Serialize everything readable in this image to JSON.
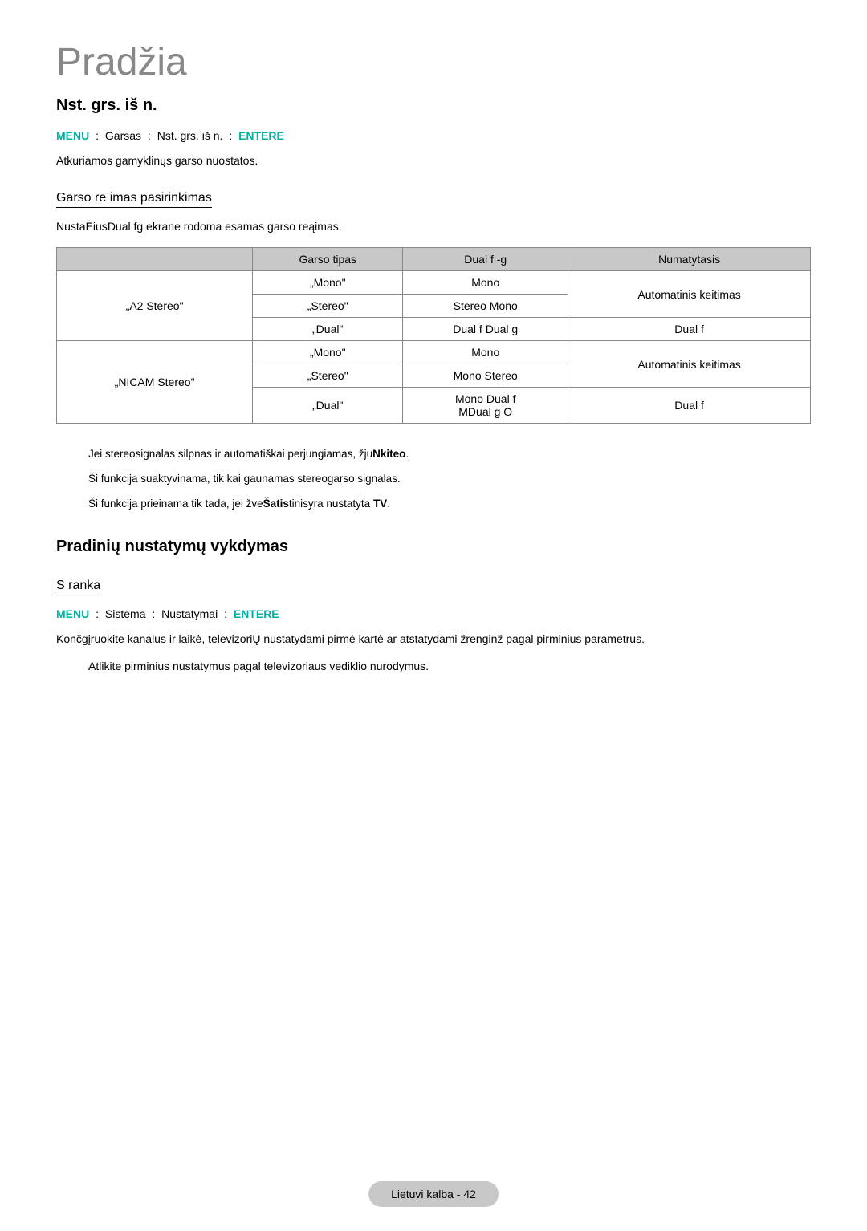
{
  "page": {
    "title": "Pradžia",
    "footer": "Lietuvi kalba - 42"
  },
  "colors": {
    "accent": "#00b3a0",
    "titleGray": "#888888",
    "headerBg": "#c8c8c8",
    "border": "#888888"
  },
  "section1": {
    "title": "Nst. grs. iš n.",
    "menuLabel": "MENU",
    "path1": "Garsas",
    "path2": "Nst. grs. iš n.",
    "enterLabel": "ENTERE",
    "body": "Atkuriamos gamyklinųs garso nuostatos."
  },
  "subsection1": {
    "title": "Garso re imas  pasirinkimas",
    "infoPrefix": "NustaĖius",
    "infoBold": "Dual fg",
    "infoSuffix": " ekrane rodoma esamas garso reąimas."
  },
  "table": {
    "headers": [
      "",
      "Garso tipas",
      "Dual f -g",
      "Numatytasis"
    ],
    "rows": [
      {
        "col1": "„A2 Stereo\"",
        "col2": "„Mono\"",
        "col3": "Mono",
        "col4": "Automatinis keitimas",
        "col1_rowspan": 3,
        "col4_rowspan": 2
      },
      {
        "col2": "„Stereo\"",
        "col3": "Stereo    Mono"
      },
      {
        "col2": "„Dual\"",
        "col3": "Dual f    Dual g",
        "col4": "Dual f"
      },
      {
        "col1": "„NICAM Stereo\"",
        "col2": "„Mono\"",
        "col3": "Mono",
        "col4": "Automatinis keitimas",
        "col1_rowspan": 3,
        "col4_rowspan": 2
      },
      {
        "col2": "„Stereo\"",
        "col3": "Mono    Stereo"
      },
      {
        "col2": "„Dual\"",
        "col3": "Mono    Dual f\nMDual g  O",
        "col4": "Dual f"
      }
    ]
  },
  "notes": {
    "n1a": "Jei stereosignalas silpnas ir automatiškai perjungiamas, žju",
    "n1b": "Nkiteo",
    "n1c": ".",
    "n2": "Ši funkcija suaktyvinama, tik kai gaunamas stereogarso signalas.",
    "n3a": "Ši funkcija prieinama tik tada, jei žve",
    "n3b": "Šatis",
    "n3c": "tinisyra nustatyta ",
    "n3d": "TV",
    "n3e": "."
  },
  "section2": {
    "title": "Pradinių nustatymų vykdymas"
  },
  "subsection2": {
    "title": "S ranka",
    "menuLabel": "MENU",
    "path1": "Sistema",
    "path2": "Nustatymai",
    "enterLabel": "ENTERE",
    "body": "Končgįruokite kanalus ir laikė, televizoriŲ nustatydami pirmė kartė ar atstatydami žrenginž pagal pirminius parametrus.",
    "indented": "Atlikite pirminius nustatymus pagal televizoriaus vediklio nurodymus."
  }
}
